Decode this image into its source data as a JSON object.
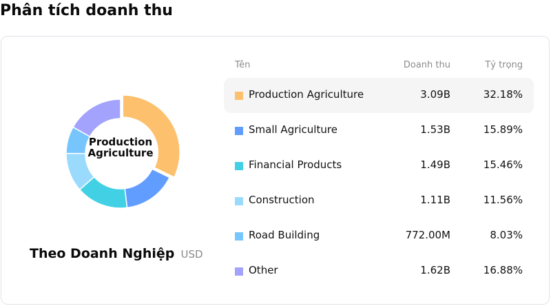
{
  "page": {
    "title": "Phân tích doanh thu"
  },
  "panel": {
    "subtitle": "Theo Doanh Nghiệp",
    "unit": "USD",
    "center_label": "Production Agriculture"
  },
  "table": {
    "headers": {
      "name": "Tên",
      "revenue": "Doanh thu",
      "share": "Tỷ trọng"
    },
    "rows": [
      {
        "name": "Production Agriculture",
        "revenue": "3.09B",
        "share": "32.18%",
        "color": "#FDC06D",
        "active": true
      },
      {
        "name": "Small Agriculture",
        "revenue": "1.53B",
        "share": "15.89%",
        "color": "#619CFF",
        "active": false
      },
      {
        "name": "Financial Products",
        "revenue": "1.49B",
        "share": "15.46%",
        "color": "#42D1E4",
        "active": false
      },
      {
        "name": "Construction",
        "revenue": "1.11B",
        "share": "11.56%",
        "color": "#9ADBFD",
        "active": false
      },
      {
        "name": "Road Building",
        "revenue": "772.00M",
        "share": "8.03%",
        "color": "#76C6FD",
        "active": false
      },
      {
        "name": "Other",
        "revenue": "1.62B",
        "share": "16.88%",
        "color": "#A3A3FD",
        "active": false
      }
    ]
  },
  "chart_data": {
    "type": "pie",
    "variant": "donut",
    "title": "Theo Doanh Nghiệp",
    "unit": "USD",
    "center_label": "Production Agriculture",
    "highlighted": "Production Agriculture",
    "categories": [
      "Production Agriculture",
      "Small Agriculture",
      "Financial Products",
      "Construction",
      "Road Building",
      "Other"
    ],
    "values": [
      3.09,
      1.53,
      1.49,
      1.11,
      0.772,
      1.62
    ],
    "value_labels": [
      "3.09B",
      "1.53B",
      "1.49B",
      "1.11B",
      "772.00M",
      "1.62B"
    ],
    "percentages": [
      32.18,
      15.89,
      15.46,
      11.56,
      8.03,
      16.88
    ],
    "colors": [
      "#FDC06D",
      "#619CFF",
      "#42D1E4",
      "#9ADBFD",
      "#76C6FD",
      "#A3A3FD"
    ],
    "legend_position": "right"
  }
}
